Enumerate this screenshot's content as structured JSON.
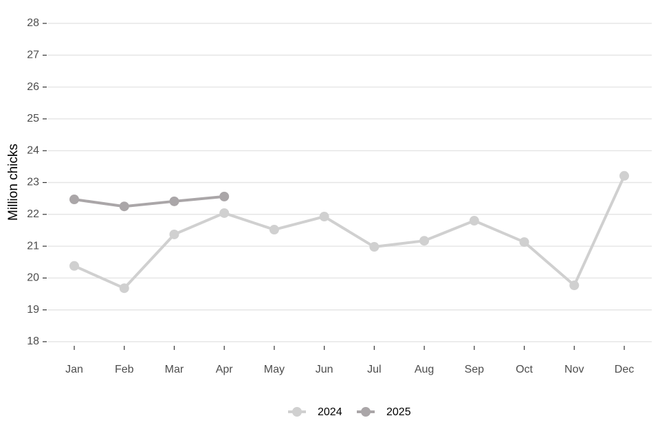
{
  "chart_data": {
    "type": "line",
    "y_label": "Million chicks",
    "categories": [
      "Jan",
      "Feb",
      "Mar",
      "Apr",
      "May",
      "Jun",
      "Jul",
      "Aug",
      "Sep",
      "Oct",
      "Nov",
      "Dec"
    ],
    "series": [
      {
        "name": "2024",
        "color": "#d0d0d0",
        "values": [
          20.38,
          19.68,
          21.37,
          22.04,
          21.52,
          21.93,
          20.98,
          21.17,
          21.8,
          21.13,
          19.77,
          23.21
        ]
      },
      {
        "name": "2025",
        "color": "#aaa6a8",
        "values": [
          22.47,
          22.25,
          22.41,
          22.56,
          null,
          null,
          null,
          null,
          null,
          null,
          null,
          null
        ]
      }
    ],
    "ylim": [
      18,
      28
    ],
    "yticks": [
      18,
      19,
      20,
      21,
      22,
      23,
      24,
      25,
      26,
      27,
      28
    ],
    "grid": true,
    "legend": "bottom"
  }
}
